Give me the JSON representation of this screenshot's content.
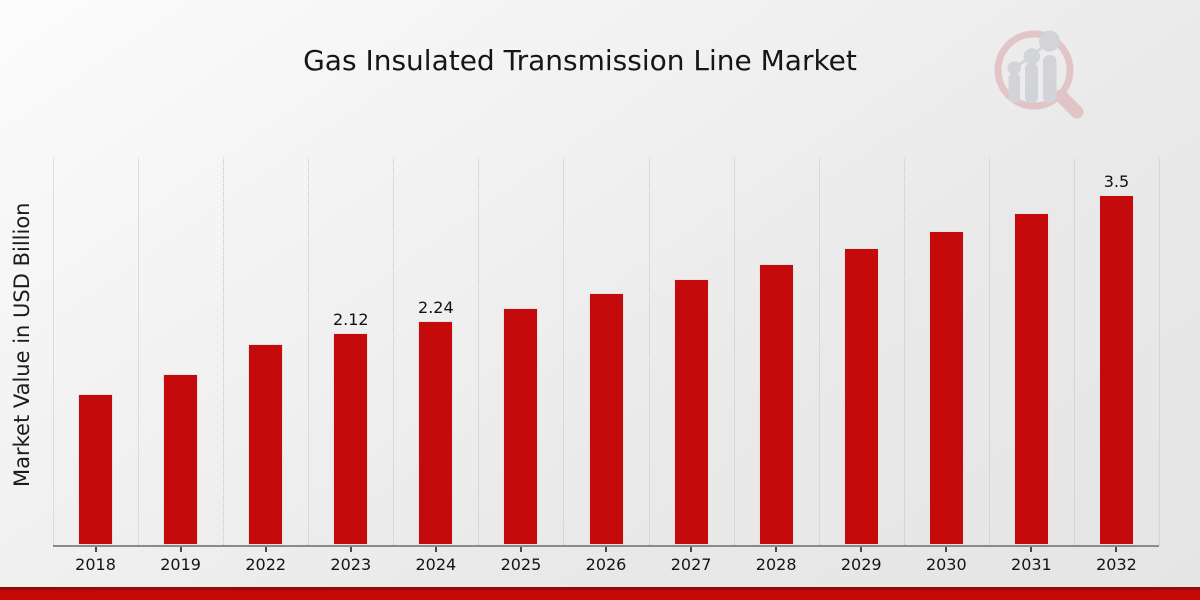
{
  "header": {
    "title": "Gas Insulated Transmission Line Market"
  },
  "axes": {
    "y_axis_label": "Market Value in USD Billion"
  },
  "logo": {
    "name": "market-research-future-watermark",
    "ring_color": "#d99fa4",
    "bars_color": "#b9bdc6"
  },
  "colors": {
    "bar": "#c40a0a",
    "footer_band": "#c40707",
    "footer_band_top": "#970909",
    "gridline": "#c5c5c5",
    "axis_line": "#8a8a8a",
    "title_text": "#161616"
  },
  "chart_data": {
    "type": "bar",
    "title": "Gas Insulated Transmission Line Market",
    "xlabel": "",
    "ylabel": "Market Value in USD Billion",
    "categories": [
      "2018",
      "2019",
      "2022",
      "2023",
      "2024",
      "2025",
      "2026",
      "2027",
      "2028",
      "2029",
      "2030",
      "2031",
      "2032"
    ],
    "values": [
      1.51,
      1.71,
      2.01,
      2.12,
      2.24,
      2.37,
      2.52,
      2.66,
      2.81,
      2.97,
      3.14,
      3.32,
      3.5
    ],
    "data_labels": [
      "",
      "",
      "",
      "2.12",
      "2.24",
      "",
      "",
      "",
      "",
      "",
      "",
      "",
      "3.5"
    ],
    "bar_color": "#c40a0a",
    "ylim": [
      0,
      3.87
    ],
    "grid": "vertical-dotted",
    "legend": "none",
    "y_ticks_shown": false
  }
}
